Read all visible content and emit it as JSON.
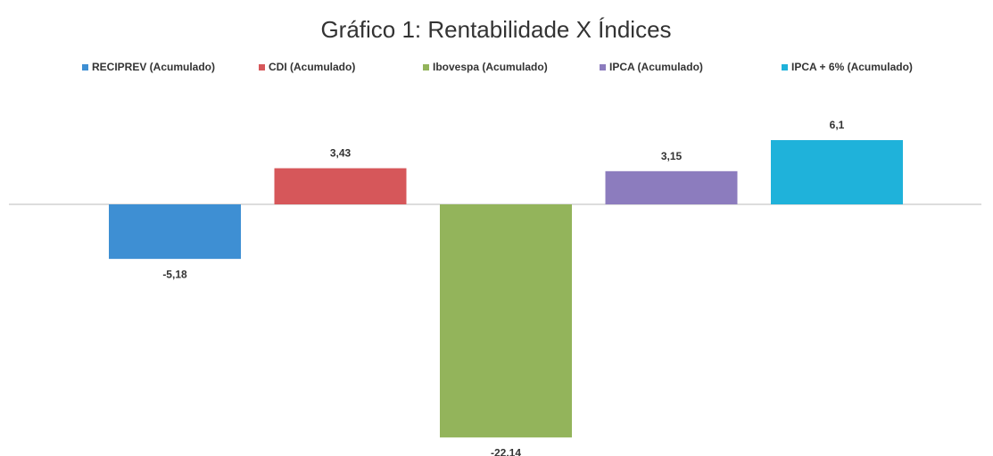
{
  "chart_data": {
    "type": "bar",
    "title": "Gráfico 1: Rentabilidade X Índices",
    "categories": [
      null
    ],
    "series": [
      {
        "name": "RECIPREV (Acumulado)",
        "color": "#3e8fd3",
        "values": [
          -5.18
        ],
        "value_labels": [
          "-5,18"
        ]
      },
      {
        "name": "CDI (Acumulado)",
        "color": "#d6575a",
        "values": [
          3.43
        ],
        "value_labels": [
          "3,43"
        ]
      },
      {
        "name": "Ibovespa (Acumulado)",
        "color": "#93b45b",
        "values": [
          -22.14
        ],
        "value_labels": [
          "-22,14"
        ]
      },
      {
        "name": "IPCA (Acumulado)",
        "color": "#8c7cbe",
        "values": [
          3.15
        ],
        "value_labels": [
          "3,15"
        ]
      },
      {
        "name": "IPCA + 6% (Acumulado)",
        "color": "#1fb2da",
        "values": [
          6.1
        ],
        "value_labels": [
          "6,1"
        ]
      }
    ],
    "ylim": [
      -23,
      7
    ],
    "legend": "top"
  }
}
